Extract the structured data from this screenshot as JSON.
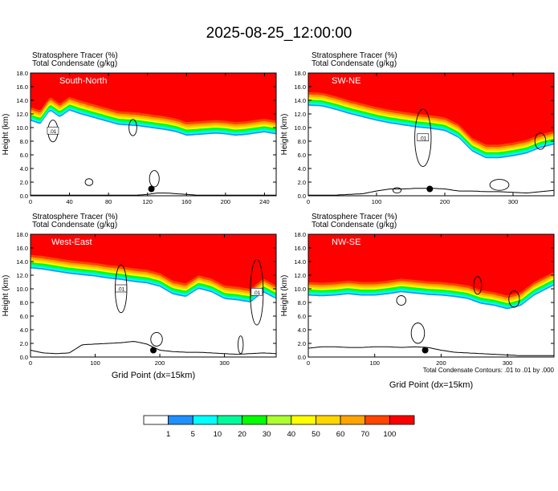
{
  "title": "2025-08-25_12:00:00",
  "colorbar": {
    "levels": [
      "1",
      "5",
      "10",
      "20",
      "30",
      "40",
      "50",
      "60",
      "70",
      "100"
    ],
    "colors": [
      "#ffffff",
      "#1e90ff",
      "#00ffff",
      "#00fa9a",
      "#00ff00",
      "#adff2f",
      "#ffff00",
      "#ffd700",
      "#ffa500",
      "#ff4500",
      "#ff0000"
    ]
  },
  "panels": [
    {
      "id": "south-north",
      "label": "South-North",
      "line1": "Stratosphere Tracer   (%)",
      "line2": "Total Condensate   (g/kg)",
      "ylabel": "Height (km)",
      "yticks": [
        "0.0",
        "2.0",
        "4.0",
        "6.0",
        "8.0",
        "10.0",
        "12.0",
        "14.0",
        "16.0",
        "18.0"
      ],
      "xticks": [
        "0",
        "40",
        "80",
        "120",
        "160",
        "200",
        "240"
      ],
      "xmax": 252,
      "contour_labels": [
        ".01"
      ],
      "chart_data": {
        "type": "heatmap",
        "x": [
          0,
          10,
          20,
          30,
          40,
          50,
          60,
          70,
          80,
          90,
          100,
          110,
          120,
          130,
          140,
          150,
          160,
          170,
          180,
          190,
          200,
          210,
          220,
          230,
          240,
          252
        ],
        "tropopause_height_km": [
          13.0,
          12.5,
          14.5,
          13.5,
          14.5,
          14.0,
          13.6,
          13.2,
          12.8,
          12.4,
          12.3,
          12.2,
          12.0,
          11.8,
          11.6,
          11.3,
          10.8,
          10.9,
          11.0,
          11.1,
          11.0,
          10.8,
          10.9,
          11.1,
          11.3,
          11.0
        ],
        "terrain_height_km": [
          0.1,
          0.1,
          0.1,
          0.1,
          0.1,
          0.1,
          0.1,
          0.1,
          0.1,
          0.1,
          0.1,
          0.1,
          0.2,
          0.4,
          0.4,
          0.3,
          0.2,
          0.1,
          0.1,
          0.1,
          0.1,
          0.1,
          0.1,
          0.1,
          0.1,
          0.1
        ],
        "marker": {
          "x": 124,
          "height_km": 1.0
        },
        "xlim": [
          0,
          252
        ],
        "ylim": [
          0,
          18
        ]
      }
    },
    {
      "id": "sw-ne",
      "label": "SW-NE",
      "line1": "Stratosphere Tracer   (%)",
      "line2": "Total Condensate   (g/kg)",
      "ylabel": "Height (km)",
      "yticks": [
        "0.0",
        "2.0",
        "4.0",
        "6.0",
        "8.0",
        "10.0",
        "12.0",
        "14.0",
        "16.0",
        "18.0"
      ],
      "xticks": [
        "0",
        "100",
        "200",
        "300"
      ],
      "xmax": 360,
      "contour_labels": [
        ".01"
      ],
      "chart_data": {
        "type": "heatmap",
        "x": [
          0,
          20,
          40,
          60,
          80,
          100,
          120,
          140,
          160,
          180,
          200,
          220,
          240,
          260,
          280,
          300,
          320,
          340,
          360
        ],
        "tropopause_height_km": [
          15.2,
          15.1,
          14.6,
          14.0,
          13.5,
          13.0,
          12.6,
          12.3,
          12.0,
          11.8,
          11.5,
          10.5,
          8.5,
          7.5,
          7.5,
          7.8,
          8.2,
          9.0,
          9.5
        ],
        "terrain_height_km": [
          0.1,
          0.1,
          0.1,
          0.2,
          0.3,
          0.7,
          1.0,
          1.0,
          1.1,
          1.1,
          1.0,
          0.7,
          0.7,
          0.6,
          0.6,
          0.5,
          0.4,
          0.6,
          0.8
        ],
        "marker": {
          "x": 178,
          "height_km": 1.0
        },
        "xlim": [
          0,
          360
        ],
        "ylim": [
          0,
          18
        ]
      }
    },
    {
      "id": "west-east",
      "label": "West-East",
      "line1": "Stratosphere Tracer   (%)",
      "line2": "Total Condensate   (g/kg)",
      "ylabel": "Height (km)",
      "yticks": [
        "0.0",
        "2.0",
        "4.0",
        "6.0",
        "8.0",
        "10.0",
        "12.0",
        "14.0",
        "16.0",
        "18.0"
      ],
      "xticks": [
        "0",
        "100",
        "200",
        "300"
      ],
      "xmax": 380,
      "contour_labels": [
        ".01",
        ".01"
      ],
      "chart_data": {
        "type": "heatmap",
        "x": [
          0,
          20,
          40,
          60,
          80,
          100,
          120,
          140,
          160,
          180,
          200,
          220,
          240,
          260,
          280,
          300,
          320,
          340,
          360,
          380
        ],
        "tropopause_height_km": [
          15.0,
          14.8,
          14.5,
          14.2,
          14.0,
          13.8,
          13.5,
          13.3,
          13.0,
          12.8,
          12.3,
          11.2,
          10.8,
          12.0,
          11.5,
          10.5,
          10.3,
          10.0,
          11.5,
          10.5
        ],
        "terrain_height_km": [
          1.0,
          0.6,
          0.5,
          0.6,
          1.8,
          1.9,
          2.0,
          2.1,
          2.3,
          1.9,
          1.0,
          0.8,
          0.7,
          0.7,
          0.6,
          0.5,
          0.4,
          0.5,
          0.6,
          0.5
        ],
        "marker": {
          "x": 190,
          "height_km": 1.0
        },
        "xlim": [
          0,
          380
        ],
        "ylim": [
          0,
          18
        ]
      }
    },
    {
      "id": "nw-se",
      "label": "NW-SE",
      "line1": "Stratosphere Tracer   (%)",
      "line2": "Total Condensate   (g/kg)",
      "ylabel": "Height (km)",
      "yticks": [
        "0.0",
        "2.0",
        "4.0",
        "6.0",
        "8.0",
        "10.0",
        "12.0",
        "14.0",
        "16.0",
        "18.0"
      ],
      "xticks": [
        "0",
        "100",
        "200",
        "300"
      ],
      "xmax": 370,
      "contour_labels": [],
      "chart_data": {
        "type": "heatmap",
        "x": [
          0,
          20,
          40,
          60,
          80,
          100,
          120,
          140,
          160,
          180,
          200,
          220,
          240,
          260,
          280,
          300,
          320,
          340,
          360,
          370
        ],
        "tropopause_height_km": [
          11.0,
          10.9,
          11.0,
          11.2,
          11.0,
          11.0,
          11.2,
          11.5,
          11.3,
          11.1,
          11.0,
          10.8,
          10.5,
          9.8,
          9.5,
          9.0,
          9.5,
          11.0,
          12.0,
          12.5
        ],
        "terrain_height_km": [
          1.3,
          1.5,
          1.5,
          1.4,
          1.4,
          1.5,
          1.5,
          1.4,
          1.5,
          1.4,
          1.0,
          0.7,
          0.6,
          0.5,
          0.4,
          0.3,
          0.2,
          0.2,
          0.2,
          0.2
        ],
        "marker": {
          "x": 176,
          "height_km": 1.0
        },
        "xlim": [
          0,
          370
        ],
        "ylim": [
          0,
          18
        ]
      }
    }
  ],
  "xaxis_label": "Grid Point (dx=15km)",
  "contour_note": "Total Condensate Contours: .01 to .01 by .000"
}
